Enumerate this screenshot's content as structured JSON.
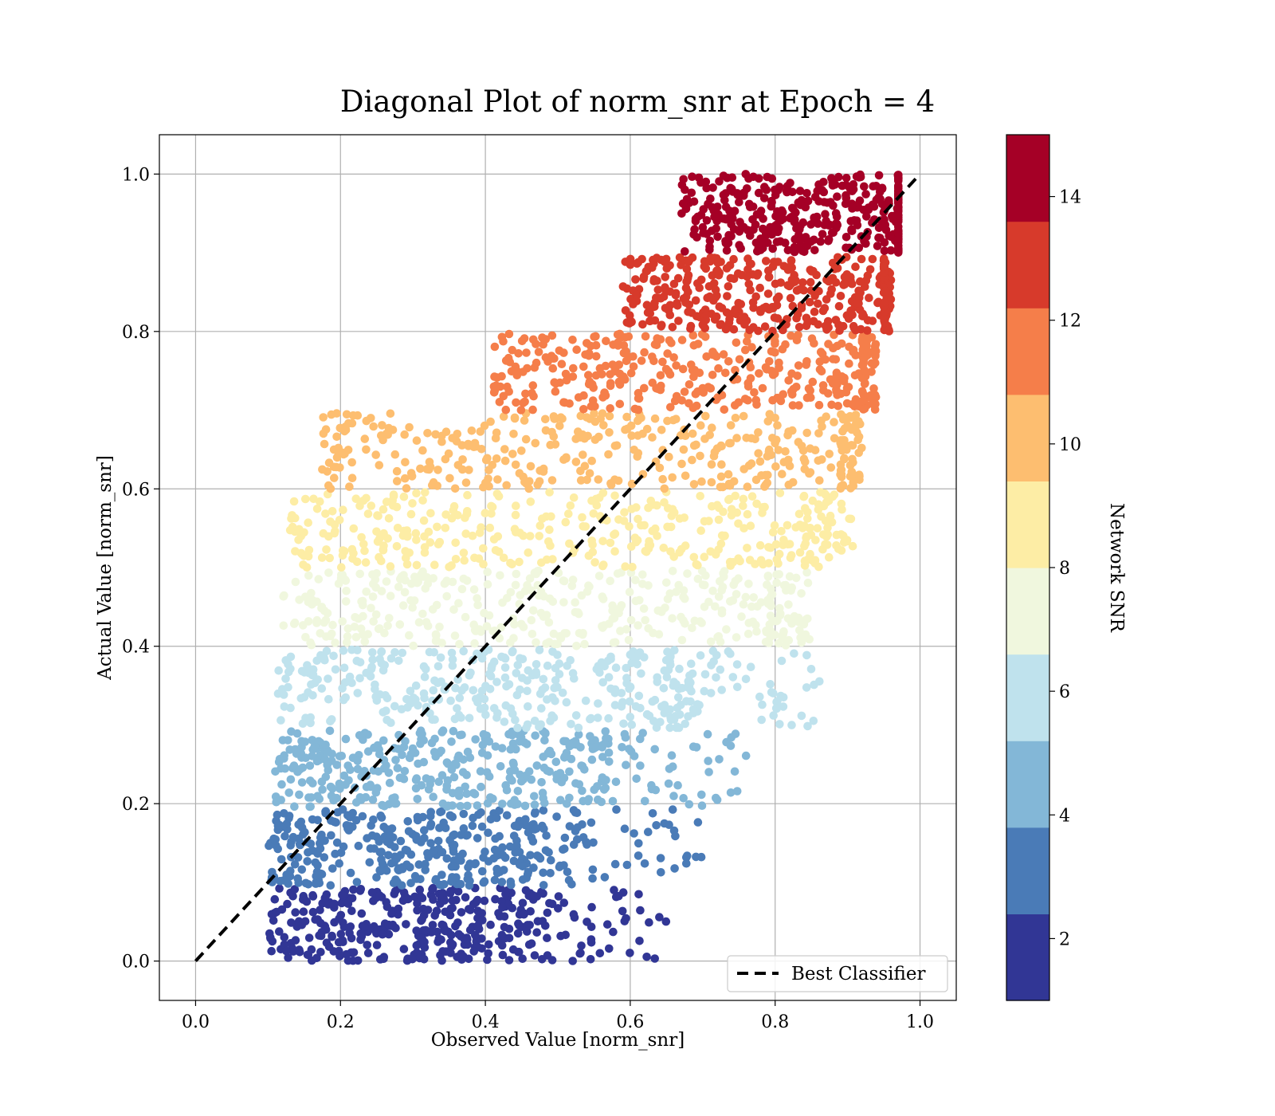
{
  "chart_data": {
    "type": "scatter",
    "title": "Diagonal Plot of norm_snr at Epoch = 4",
    "xlabel": "Observed Value [norm_snr]",
    "ylabel": "Actual Value [norm_snr]",
    "xlim": [
      -0.05,
      1.05
    ],
    "ylim": [
      -0.05,
      1.05
    ],
    "xticks": [
      "0.0",
      "0.2",
      "0.4",
      "0.6",
      "0.8",
      "1.0"
    ],
    "yticks": [
      "0.0",
      "0.2",
      "0.4",
      "0.6",
      "0.8",
      "1.0"
    ],
    "grid": true,
    "reference_line": {
      "label": "Best Classifier",
      "from": [
        0.0,
        0.0
      ],
      "to": [
        1.0,
        1.0
      ],
      "style": "dashed",
      "color": "#000000"
    },
    "legend": {
      "position": "bottom-right",
      "entries": [
        "Best Classifier"
      ]
    },
    "colorbar": {
      "label": "Network SNR",
      "range": [
        1,
        15
      ],
      "ticks": [
        "2",
        "4",
        "6",
        "8",
        "10",
        "12",
        "14"
      ],
      "colors": [
        "#313695",
        "#4a7bb7",
        "#83b7d7",
        "#bfe2ed",
        "#f0f7de",
        "#fdeda5",
        "#fdbe70",
        "#f57e4a",
        "#d73a2b",
        "#a50026"
      ]
    },
    "bands": [
      {
        "snr_range": [
          1.0,
          2.4
        ],
        "y_range": [
          0.0,
          0.093
        ],
        "x_core": [
          0.1,
          0.46
        ],
        "x_max": 0.66,
        "color": "#313695"
      },
      {
        "snr_range": [
          2.4,
          3.8
        ],
        "y_range": [
          0.096,
          0.193
        ],
        "x_core": [
          0.1,
          0.48
        ],
        "x_max": 0.73,
        "color": "#4a7bb7"
      },
      {
        "snr_range": [
          3.8,
          5.2
        ],
        "y_range": [
          0.196,
          0.293
        ],
        "x_core": [
          0.11,
          0.56
        ],
        "x_max": 0.76,
        "color": "#83b7d7"
      },
      {
        "snr_range": [
          5.2,
          6.6
        ],
        "y_range": [
          0.296,
          0.396
        ],
        "x_core": [
          0.11,
          0.68
        ],
        "x_max": 0.87,
        "color": "#bfe2ed"
      },
      {
        "snr_range": [
          6.6,
          8.0
        ],
        "y_range": [
          0.4,
          0.496
        ],
        "x_core": [
          0.12,
          0.79
        ],
        "x_max": 0.85,
        "color": "#f0f7de"
      },
      {
        "snr_range": [
          8.0,
          9.4
        ],
        "y_range": [
          0.5,
          0.596
        ],
        "x_core": [
          0.13,
          0.84
        ],
        "x_max": 0.91,
        "color": "#fdeda5"
      },
      {
        "snr_range": [
          9.4,
          10.8
        ],
        "y_range": [
          0.6,
          0.696
        ],
        "x_core": [
          0.17,
          0.89
        ],
        "x_max": 0.92,
        "color": "#fdbe70"
      },
      {
        "snr_range": [
          10.8,
          12.2
        ],
        "y_range": [
          0.7,
          0.797
        ],
        "x_core": [
          0.41,
          0.92
        ],
        "x_max": 0.94,
        "color": "#f57e4a"
      },
      {
        "snr_range": [
          12.2,
          13.6
        ],
        "y_range": [
          0.8,
          0.895
        ],
        "x_core": [
          0.59,
          0.95
        ],
        "x_max": 0.96,
        "color": "#d73a2b"
      },
      {
        "snr_range": [
          13.6,
          15.0
        ],
        "y_range": [
          0.9,
          1.0
        ],
        "x_core": [
          0.67,
          0.97
        ],
        "x_max": 0.97,
        "color": "#a50026"
      }
    ]
  }
}
